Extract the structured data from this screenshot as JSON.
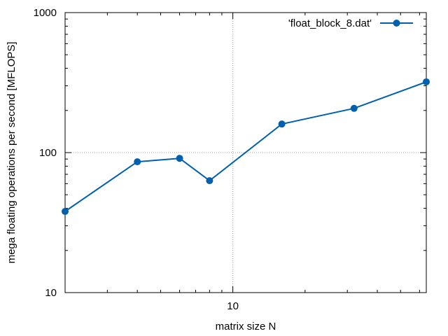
{
  "chart_data": {
    "type": "line",
    "x_scale": "log",
    "y_scale": "log",
    "xlabel": "matrix size N",
    "ylabel": "mega floating operations per second [MFLOPS]",
    "xlim": [
      2,
      64
    ],
    "ylim": [
      10,
      1000
    ],
    "x_ticks": [
      {
        "value": 10,
        "label": "10"
      }
    ],
    "y_ticks": [
      {
        "value": 10,
        "label": "10"
      },
      {
        "value": 100,
        "label": "100"
      },
      {
        "value": 1000,
        "label": "1000"
      }
    ],
    "grid": true,
    "legend_position": "top-right",
    "colors": {
      "series": "#0060ad",
      "grid": "#a0a0a0",
      "axis": "#000000"
    },
    "series": [
      {
        "name": "'float_block_8.dat'",
        "x": [
          2,
          4,
          6,
          8,
          16,
          32,
          64
        ],
        "y": [
          38,
          86,
          91,
          63,
          160,
          207,
          320
        ]
      }
    ]
  }
}
